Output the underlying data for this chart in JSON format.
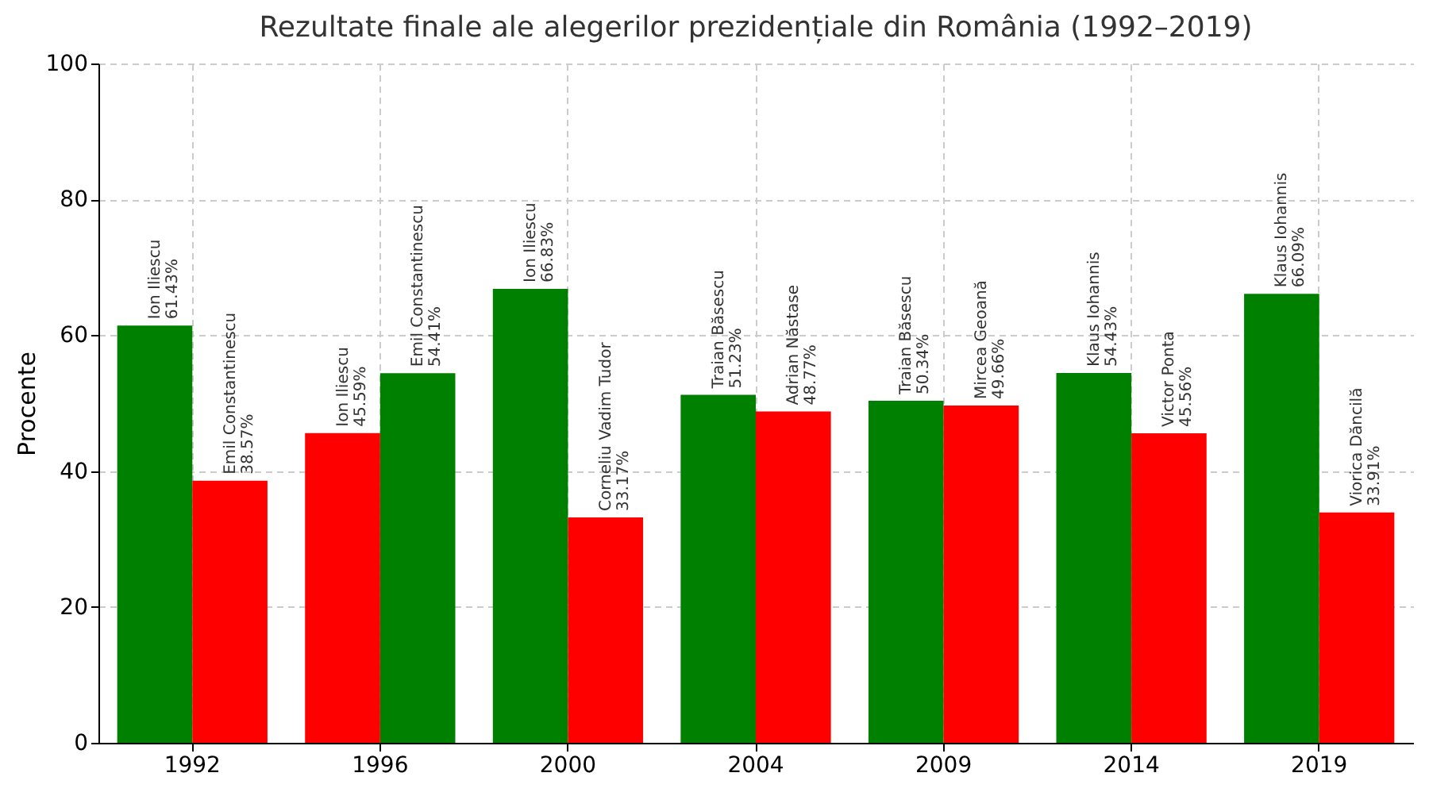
{
  "chart_data": {
    "type": "bar",
    "title": "Rezultate finale ale alegerilor prezidențiale din România (1992–2019)",
    "ylabel": "Procente",
    "categories": [
      "1992",
      "1996",
      "2000",
      "2004",
      "2009",
      "2014",
      "2019"
    ],
    "series": [
      {
        "colors": [
          "#008000",
          "#ff0000",
          "#008000",
          "#008000",
          "#008000",
          "#008000",
          "#008000"
        ],
        "values": [
          61.43,
          45.59,
          66.83,
          51.23,
          50.34,
          54.43,
          66.09
        ],
        "value_labels": [
          "Ion Iliescu\n61.43%",
          "Ion Iliescu\n45.59%",
          "Ion Iliescu\n66.83%",
          "Traian Băsescu\n51.23%",
          "Traian Băsescu\n50.34%",
          "Klaus Iohannis\n54.43%",
          "Klaus Iohannis\n66.09%"
        ]
      },
      {
        "colors": [
          "#ff0000",
          "#008000",
          "#ff0000",
          "#ff0000",
          "#ff0000",
          "#ff0000",
          "#ff0000"
        ],
        "values": [
          38.57,
          54.41,
          33.17,
          48.77,
          49.66,
          45.56,
          33.91
        ],
        "value_labels": [
          "Emil Constantinescu\n38.57%",
          "Emil Constantinescu\n54.41%",
          "Corneliu Vadim Tudor\n33.17%",
          "Adrian Năstase\n48.77%",
          "Mircea Geoană\n49.66%",
          "Victor Ponta\n45.56%",
          "Viorica Dăncilă\n33.91%"
        ]
      }
    ],
    "ylim": [
      0,
      100
    ],
    "yticks": [
      0,
      20,
      40,
      60,
      80,
      100
    ],
    "grid": true
  }
}
